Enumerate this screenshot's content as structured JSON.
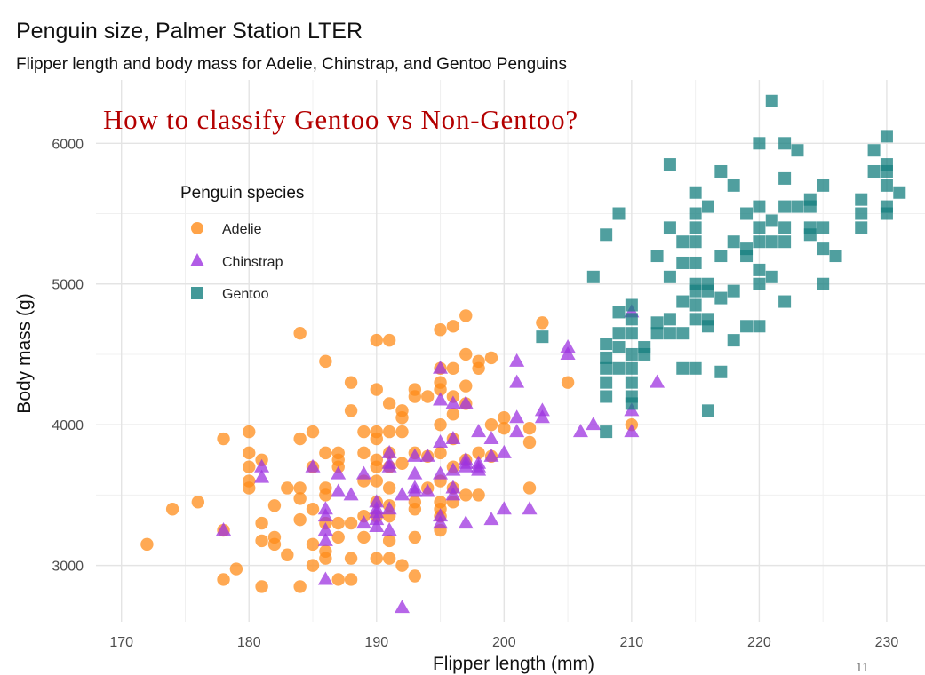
{
  "chart_data": {
    "type": "scatter",
    "title": "Penguin size, Palmer Station LTER",
    "subtitle": "Flipper length and body mass for Adelie, Chinstrap, and Gentoo Penguins",
    "annotation": "How to classify Gentoo vs Non-Gentoo?",
    "xlabel": "Flipper length (mm)",
    "ylabel": "Body mass (g)",
    "xlim": [
      168,
      233
    ],
    "ylim": [
      2600,
      6450
    ],
    "x_ticks": [
      170,
      180,
      190,
      200,
      210,
      220,
      230
    ],
    "y_ticks": [
      3000,
      4000,
      5000,
      6000
    ],
    "grid": true,
    "legend": {
      "title": "Penguin species",
      "placement": "top-left"
    },
    "page_number": "11",
    "colors": {
      "Adelie": "#FF8C1A",
      "Chinstrap": "#9E33E0",
      "Gentoo": "#157F7F",
      "annotation": "#B30000"
    },
    "series": [
      {
        "name": "Adelie",
        "marker": "circle",
        "points": [
          [
            172,
            3150
          ],
          [
            174,
            3400
          ],
          [
            176,
            3450
          ],
          [
            178,
            2900
          ],
          [
            178,
            3900
          ],
          [
            178,
            3250
          ],
          [
            179,
            2975
          ],
          [
            180,
            3950
          ],
          [
            180,
            3800
          ],
          [
            180,
            3700
          ],
          [
            180,
            3600
          ],
          [
            180,
            3550
          ],
          [
            181,
            3750
          ],
          [
            181,
            3300
          ],
          [
            181,
            3175
          ],
          [
            181,
            2850
          ],
          [
            182,
            3200
          ],
          [
            182,
            3150
          ],
          [
            182,
            3425
          ],
          [
            183,
            3075
          ],
          [
            183,
            3550
          ],
          [
            184,
            4650
          ],
          [
            184,
            3900
          ],
          [
            184,
            3550
          ],
          [
            184,
            3475
          ],
          [
            184,
            3325
          ],
          [
            184,
            2850
          ],
          [
            185,
            3950
          ],
          [
            185,
            3700
          ],
          [
            185,
            3400
          ],
          [
            185,
            3150
          ],
          [
            185,
            3000
          ],
          [
            186,
            4450
          ],
          [
            186,
            3800
          ],
          [
            186,
            3550
          ],
          [
            186,
            3500
          ],
          [
            186,
            3300
          ],
          [
            186,
            3100
          ],
          [
            186,
            3050
          ],
          [
            187,
            3800
          ],
          [
            187,
            3700
          ],
          [
            187,
            3750
          ],
          [
            187,
            3300
          ],
          [
            187,
            3200
          ],
          [
            187,
            2900
          ],
          [
            188,
            4300
          ],
          [
            188,
            4100
          ],
          [
            188,
            3300
          ],
          [
            188,
            3050
          ],
          [
            188,
            2900
          ],
          [
            189,
            3950
          ],
          [
            189,
            3800
          ],
          [
            189,
            3600
          ],
          [
            189,
            3350
          ],
          [
            189,
            3200
          ],
          [
            190,
            4600
          ],
          [
            190,
            4250
          ],
          [
            190,
            3950
          ],
          [
            190,
            3900
          ],
          [
            190,
            3750
          ],
          [
            190,
            3700
          ],
          [
            190,
            3600
          ],
          [
            190,
            3450
          ],
          [
            190,
            3350
          ],
          [
            190,
            3050
          ],
          [
            191,
            4600
          ],
          [
            191,
            4150
          ],
          [
            191,
            3950
          ],
          [
            191,
            3800
          ],
          [
            191,
            3700
          ],
          [
            191,
            3550
          ],
          [
            191,
            3425
          ],
          [
            191,
            3350
          ],
          [
            191,
            3175
          ],
          [
            191,
            3050
          ],
          [
            192,
            4100
          ],
          [
            192,
            4050
          ],
          [
            192,
            3950
          ],
          [
            192,
            3725
          ],
          [
            192,
            3000
          ],
          [
            193,
            4250
          ],
          [
            193,
            4200
          ],
          [
            193,
            3800
          ],
          [
            193,
            3450
          ],
          [
            193,
            3400
          ],
          [
            193,
            3200
          ],
          [
            193,
            2925
          ],
          [
            194,
            4200
          ],
          [
            194,
            3775
          ],
          [
            194,
            3550
          ],
          [
            195,
            4675
          ],
          [
            195,
            4400
          ],
          [
            195,
            4300
          ],
          [
            195,
            4250
          ],
          [
            195,
            4000
          ],
          [
            195,
            3800
          ],
          [
            195,
            3600
          ],
          [
            195,
            3450
          ],
          [
            195,
            3400
          ],
          [
            195,
            3350
          ],
          [
            195,
            3250
          ],
          [
            196,
            4700
          ],
          [
            196,
            4400
          ],
          [
            196,
            4200
          ],
          [
            196,
            4075
          ],
          [
            196,
            3900
          ],
          [
            196,
            3700
          ],
          [
            196,
            3550
          ],
          [
            196,
            3450
          ],
          [
            197,
            4775
          ],
          [
            197,
            4500
          ],
          [
            197,
            4275
          ],
          [
            197,
            4150
          ],
          [
            197,
            3750
          ],
          [
            197,
            3500
          ],
          [
            198,
            4450
          ],
          [
            198,
            4400
          ],
          [
            198,
            3800
          ],
          [
            198,
            3500
          ],
          [
            199,
            4475
          ],
          [
            199,
            4000
          ],
          [
            199,
            3775
          ],
          [
            200,
            4050
          ],
          [
            200,
            3975
          ],
          [
            202,
            3975
          ],
          [
            202,
            3875
          ],
          [
            202,
            3550
          ],
          [
            203,
            4725
          ],
          [
            205,
            4300
          ],
          [
            210,
            4000
          ]
        ]
      },
      {
        "name": "Chinstrap",
        "marker": "triangle",
        "points": [
          [
            178,
            3250
          ],
          [
            181,
            3700
          ],
          [
            181,
            3625
          ],
          [
            185,
            3700
          ],
          [
            186,
            3400
          ],
          [
            186,
            3350
          ],
          [
            186,
            3250
          ],
          [
            186,
            3175
          ],
          [
            186,
            2900
          ],
          [
            187,
            3650
          ],
          [
            187,
            3525
          ],
          [
            188,
            3500
          ],
          [
            189,
            3650
          ],
          [
            189,
            3300
          ],
          [
            190,
            3450
          ],
          [
            190,
            3400
          ],
          [
            190,
            3375
          ],
          [
            190,
            3325
          ],
          [
            190,
            3275
          ],
          [
            191,
            3800
          ],
          [
            191,
            3725
          ],
          [
            191,
            3700
          ],
          [
            191,
            3400
          ],
          [
            191,
            3250
          ],
          [
            192,
            3500
          ],
          [
            192,
            2700
          ],
          [
            193,
            3775
          ],
          [
            193,
            3650
          ],
          [
            193,
            3525
          ],
          [
            193,
            3550
          ],
          [
            194,
            3775
          ],
          [
            194,
            3525
          ],
          [
            195,
            4400
          ],
          [
            195,
            4175
          ],
          [
            195,
            3875
          ],
          [
            195,
            3650
          ],
          [
            195,
            3350
          ],
          [
            195,
            3300
          ],
          [
            196,
            4150
          ],
          [
            196,
            3900
          ],
          [
            196,
            3675
          ],
          [
            196,
            3550
          ],
          [
            196,
            3500
          ],
          [
            197,
            4150
          ],
          [
            197,
            3750
          ],
          [
            197,
            3725
          ],
          [
            197,
            3700
          ],
          [
            197,
            3300
          ],
          [
            198,
            3950
          ],
          [
            198,
            3725
          ],
          [
            198,
            3700
          ],
          [
            198,
            3675
          ],
          [
            199,
            3775
          ],
          [
            199,
            3900
          ],
          [
            199,
            3325
          ],
          [
            200,
            3400
          ],
          [
            200,
            3800
          ],
          [
            201,
            4450
          ],
          [
            201,
            4300
          ],
          [
            201,
            4050
          ],
          [
            201,
            3950
          ],
          [
            202,
            3400
          ],
          [
            203,
            4100
          ],
          [
            203,
            4050
          ],
          [
            205,
            4550
          ],
          [
            205,
            4500
          ],
          [
            206,
            3950
          ],
          [
            207,
            4000
          ],
          [
            210,
            4800
          ],
          [
            210,
            4100
          ],
          [
            210,
            3950
          ],
          [
            212,
            4300
          ]
        ]
      },
      {
        "name": "Gentoo",
        "marker": "square",
        "points": [
          [
            203,
            4625
          ],
          [
            207,
            5050
          ],
          [
            208,
            5350
          ],
          [
            208,
            4575
          ],
          [
            208,
            4475
          ],
          [
            208,
            4400
          ],
          [
            208,
            4300
          ],
          [
            208,
            4200
          ],
          [
            208,
            3950
          ],
          [
            209,
            5500
          ],
          [
            209,
            4800
          ],
          [
            209,
            4650
          ],
          [
            209,
            4550
          ],
          [
            209,
            4400
          ],
          [
            210,
            4850
          ],
          [
            210,
            4750
          ],
          [
            210,
            4650
          ],
          [
            210,
            4500
          ],
          [
            210,
            4400
          ],
          [
            210,
            4300
          ],
          [
            210,
            4200
          ],
          [
            210,
            4150
          ],
          [
            211,
            4550
          ],
          [
            211,
            4500
          ],
          [
            212,
            5200
          ],
          [
            212,
            4725
          ],
          [
            212,
            4650
          ],
          [
            213,
            5850
          ],
          [
            213,
            5400
          ],
          [
            213,
            5050
          ],
          [
            213,
            4750
          ],
          [
            213,
            4650
          ],
          [
            214,
            5300
          ],
          [
            214,
            5150
          ],
          [
            214,
            4875
          ],
          [
            214,
            4650
          ],
          [
            214,
            4400
          ],
          [
            215,
            5650
          ],
          [
            215,
            5500
          ],
          [
            215,
            5400
          ],
          [
            215,
            5300
          ],
          [
            215,
            5150
          ],
          [
            215,
            5000
          ],
          [
            215,
            4950
          ],
          [
            215,
            4850
          ],
          [
            215,
            4750
          ],
          [
            215,
            4400
          ],
          [
            216,
            5550
          ],
          [
            216,
            5000
          ],
          [
            216,
            4950
          ],
          [
            216,
            4750
          ],
          [
            216,
            4700
          ],
          [
            216,
            4100
          ],
          [
            217,
            5800
          ],
          [
            217,
            5200
          ],
          [
            217,
            4900
          ],
          [
            217,
            4375
          ],
          [
            218,
            5700
          ],
          [
            218,
            5300
          ],
          [
            218,
            4950
          ],
          [
            218,
            4600
          ],
          [
            219,
            5500
          ],
          [
            219,
            5250
          ],
          [
            219,
            5200
          ],
          [
            219,
            4700
          ],
          [
            220,
            6000
          ],
          [
            220,
            5550
          ],
          [
            220,
            5400
          ],
          [
            220,
            5300
          ],
          [
            220,
            5100
          ],
          [
            220,
            5000
          ],
          [
            220,
            4700
          ],
          [
            221,
            5450
          ],
          [
            221,
            5300
          ],
          [
            221,
            5050
          ],
          [
            221,
            6300
          ],
          [
            222,
            6000
          ],
          [
            222,
            5750
          ],
          [
            222,
            5550
          ],
          [
            222,
            5400
          ],
          [
            222,
            5300
          ],
          [
            222,
            4875
          ],
          [
            223,
            5950
          ],
          [
            223,
            5550
          ],
          [
            224,
            5550
          ],
          [
            224,
            5400
          ],
          [
            224,
            5600
          ],
          [
            224,
            5350
          ],
          [
            225,
            5700
          ],
          [
            225,
            5400
          ],
          [
            225,
            5250
          ],
          [
            225,
            5000
          ],
          [
            226,
            5200
          ],
          [
            228,
            5600
          ],
          [
            228,
            5500
          ],
          [
            228,
            5400
          ],
          [
            229,
            5950
          ],
          [
            229,
            5800
          ],
          [
            230,
            6050
          ],
          [
            230,
            5850
          ],
          [
            230,
            5800
          ],
          [
            230,
            5700
          ],
          [
            230,
            5550
          ],
          [
            230,
            5500
          ],
          [
            231,
            5650
          ]
        ]
      }
    ]
  }
}
